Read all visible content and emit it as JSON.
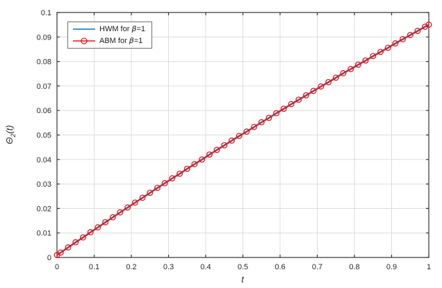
{
  "axes": {
    "xlabel": "t",
    "ylabel": {
      "symbol": "Θ",
      "sub": "2",
      "rest": "(t)"
    }
  },
  "legend": {
    "items": [
      {
        "prefix": "HWM for ",
        "symbol": "β",
        "suffix": "=1"
      },
      {
        "prefix": "ABM for ",
        "symbol": "β",
        "suffix": "=1"
      }
    ]
  },
  "colors": {
    "axis": "#333333",
    "grid": "#dcdcdc",
    "tick_label": "#262626",
    "hwm_blue": "#0072bd",
    "abm_red": "#ee1111",
    "background": "#ffffff"
  },
  "chart_data": {
    "type": "line",
    "title": "",
    "xlabel": "t",
    "ylabel": "Theta_2(t)",
    "grid": true,
    "legend_position": "top-left-inside",
    "xlim": [
      0,
      1
    ],
    "ylim": [
      0,
      0.1
    ],
    "xticks": {
      "values": [
        0,
        0.1,
        0.2,
        0.3,
        0.4,
        0.5,
        0.6,
        0.7,
        0.8,
        0.9,
        1
      ],
      "labels": [
        "0",
        "0.1",
        "0.2",
        "0.3",
        "0.4",
        "0.5",
        "0.6",
        "0.7",
        "0.8",
        "0.9",
        "1"
      ]
    },
    "yticks": {
      "values": [
        0,
        0.01,
        0.02,
        0.03,
        0.04,
        0.05,
        0.06,
        0.07,
        0.08,
        0.09,
        0.1
      ],
      "labels": [
        "0",
        "0.01",
        "0.02",
        "0.03",
        "0.04",
        "0.05",
        "0.06",
        "0.07",
        "0.08",
        "0.09",
        "0.1"
      ]
    },
    "x": [
      0,
      0.01,
      0.03,
      0.05,
      0.07,
      0.09,
      0.11,
      0.13,
      0.15,
      0.17,
      0.19,
      0.21,
      0.23,
      0.25,
      0.27,
      0.29,
      0.31,
      0.33,
      0.35,
      0.37,
      0.39,
      0.41,
      0.43,
      0.45,
      0.47,
      0.49,
      0.51,
      0.53,
      0.55,
      0.57,
      0.59,
      0.61,
      0.63,
      0.65,
      0.67,
      0.69,
      0.71,
      0.73,
      0.75,
      0.77,
      0.79,
      0.81,
      0.83,
      0.85,
      0.87,
      0.89,
      0.91,
      0.93,
      0.95,
      0.97,
      0.99,
      1
    ],
    "series": [
      {
        "name": "HWM for β=1",
        "color": "#0072bd",
        "marker": "none",
        "values": [
          0.001,
          0.002,
          0.0041,
          0.0062,
          0.0082,
          0.0103,
          0.0123,
          0.0144,
          0.0164,
          0.0184,
          0.0204,
          0.0224,
          0.0244,
          0.0264,
          0.0284,
          0.0303,
          0.0323,
          0.0342,
          0.0362,
          0.0381,
          0.04,
          0.042,
          0.0439,
          0.0458,
          0.0477,
          0.0496,
          0.0514,
          0.0533,
          0.0552,
          0.057,
          0.0589,
          0.0607,
          0.0626,
          0.0644,
          0.0662,
          0.068,
          0.0698,
          0.0716,
          0.0734,
          0.0752,
          0.0769,
          0.0787,
          0.0804,
          0.0822,
          0.0839,
          0.0856,
          0.0874,
          0.0891,
          0.0908,
          0.0925,
          0.0942,
          0.095
        ]
      },
      {
        "name": "ABM for β=1",
        "color": "#ee1111",
        "marker": "circle",
        "values": [
          0.001,
          0.002,
          0.0041,
          0.0062,
          0.0082,
          0.0103,
          0.0123,
          0.0144,
          0.0164,
          0.0184,
          0.0204,
          0.0224,
          0.0244,
          0.0264,
          0.0284,
          0.0303,
          0.0323,
          0.0342,
          0.0362,
          0.0381,
          0.04,
          0.042,
          0.0439,
          0.0458,
          0.0477,
          0.0496,
          0.0514,
          0.0533,
          0.0552,
          0.057,
          0.0589,
          0.0607,
          0.0626,
          0.0644,
          0.0662,
          0.068,
          0.0698,
          0.0716,
          0.0734,
          0.0752,
          0.0769,
          0.0787,
          0.0804,
          0.0822,
          0.0839,
          0.0856,
          0.0874,
          0.0891,
          0.0908,
          0.0925,
          0.0942,
          0.095
        ]
      }
    ]
  }
}
